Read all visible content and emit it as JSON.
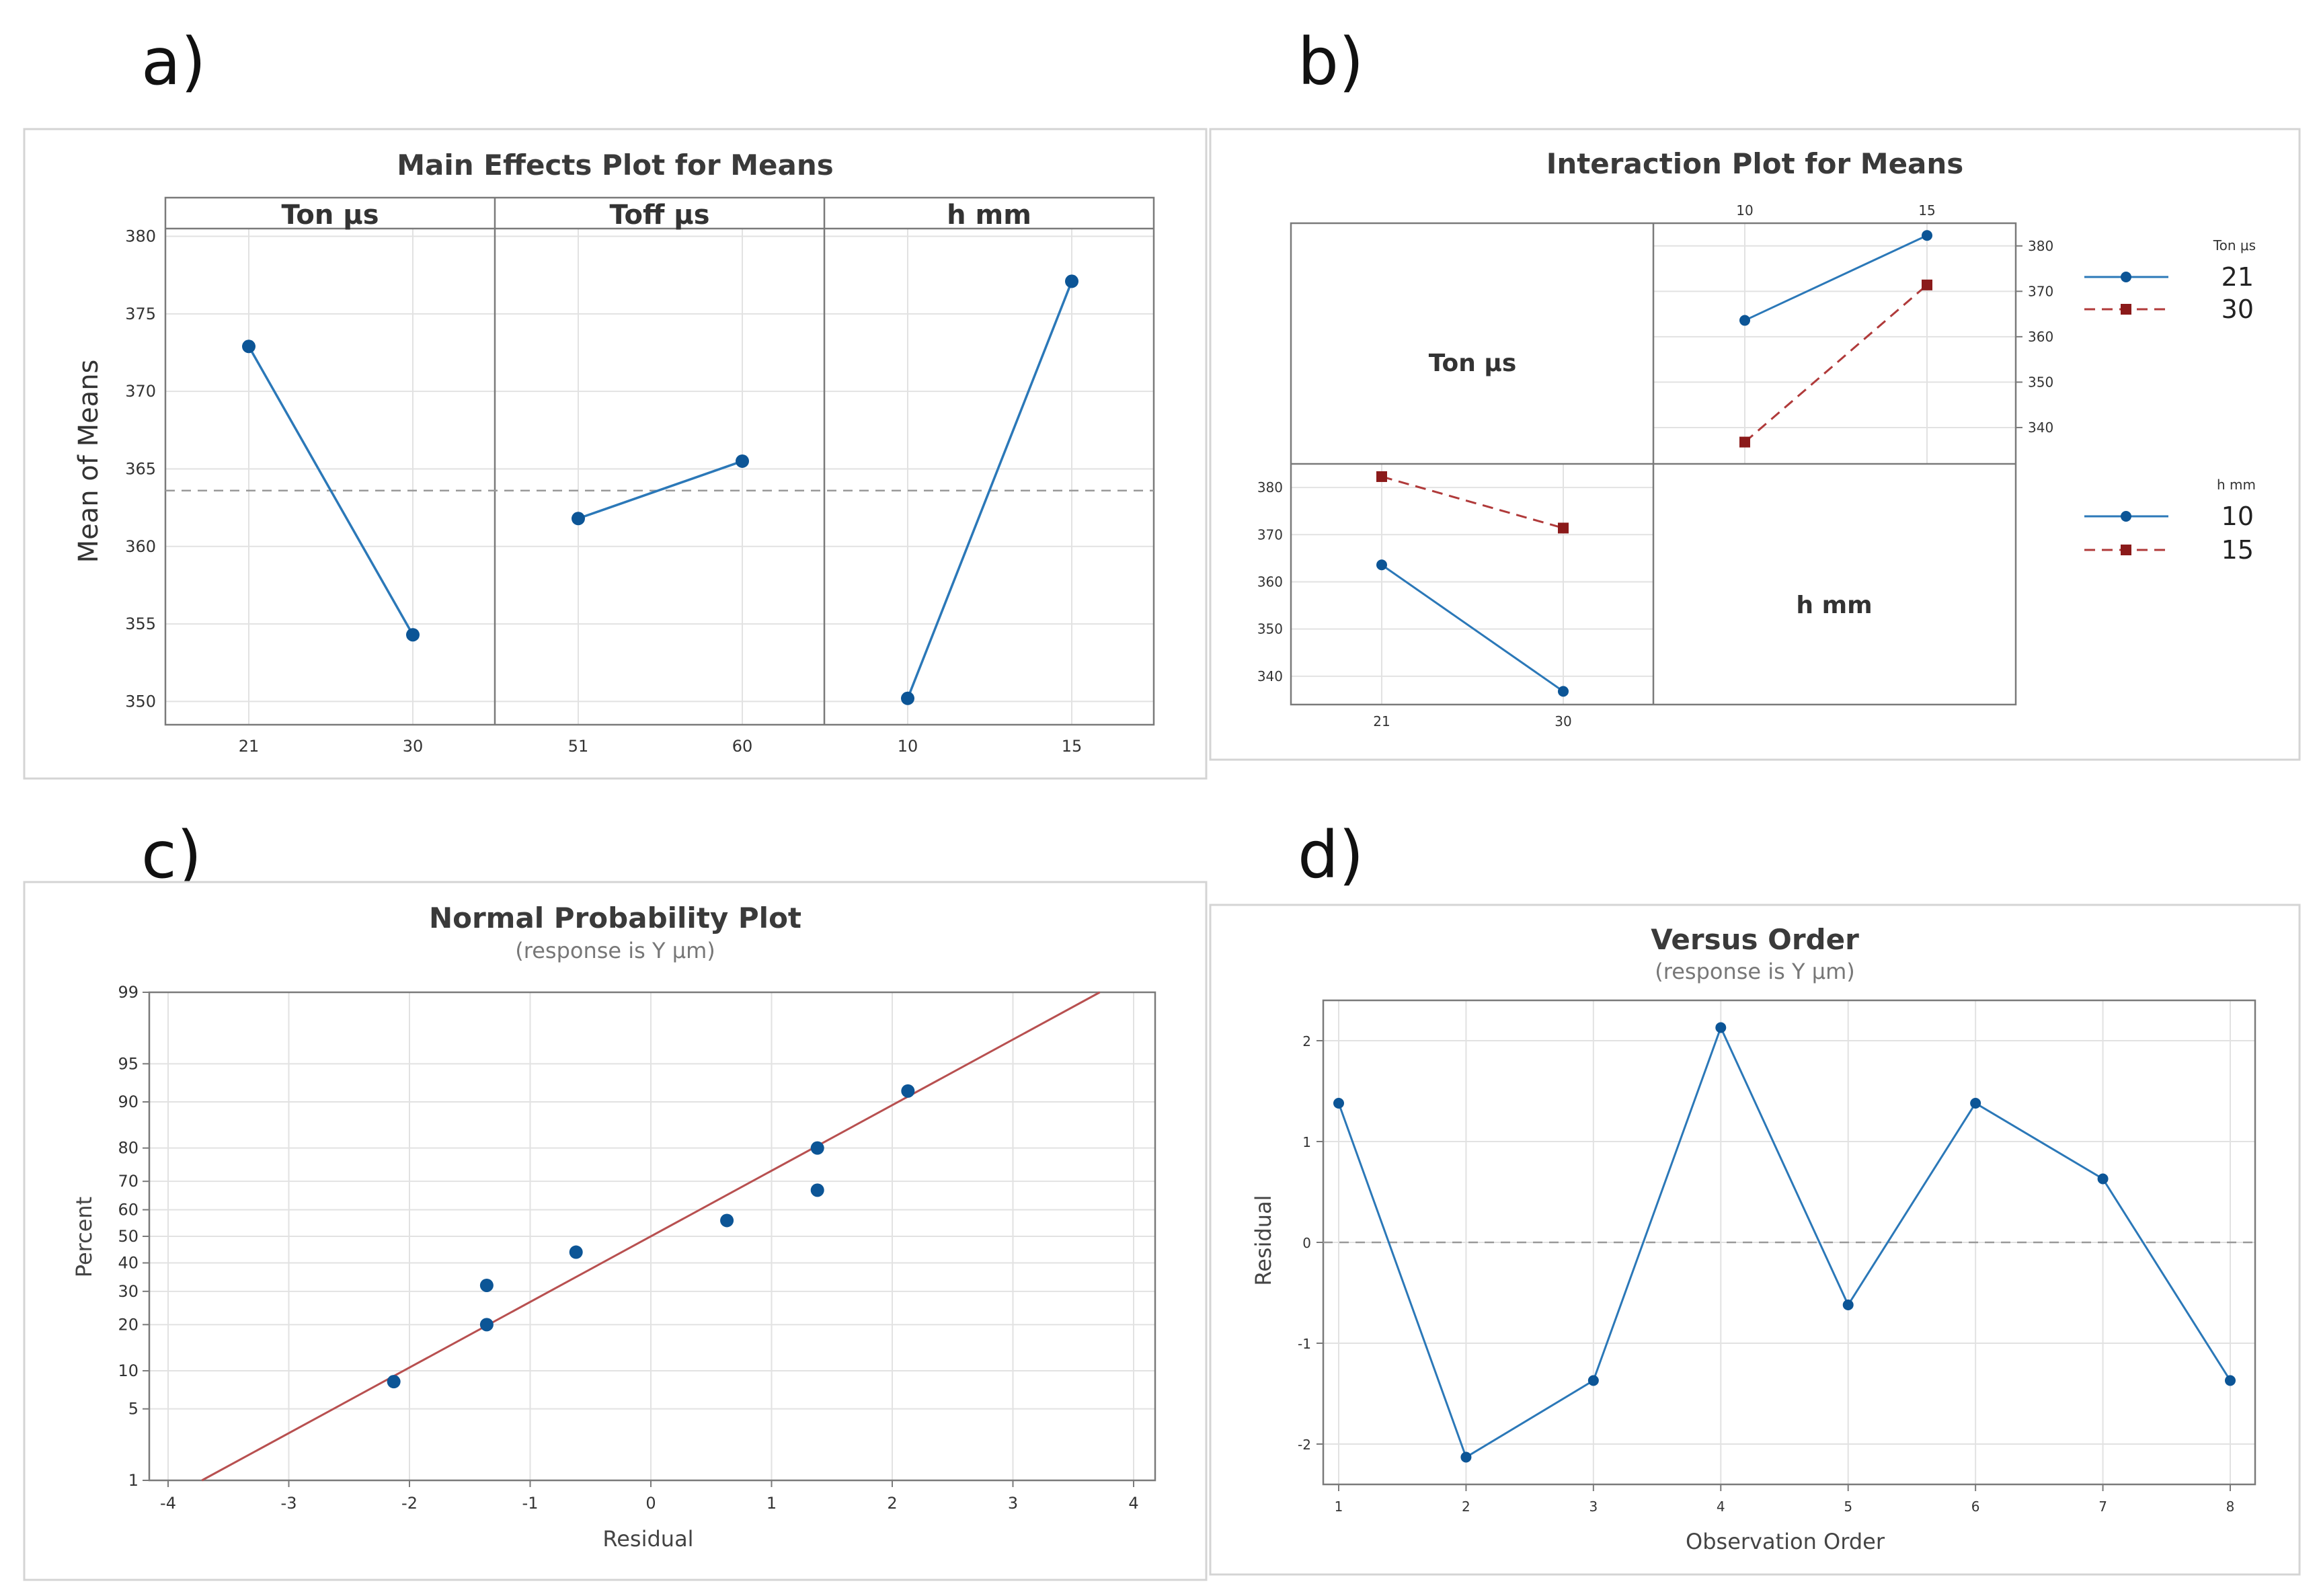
{
  "panels": [
    "a)",
    "b)",
    "c)",
    "d)"
  ],
  "colors": {
    "series1": "#2b78b8",
    "marker1": "#0c5596",
    "series2": "#b03a3a",
    "marker2": "#8b1a1a",
    "fit": "#b85050",
    "ref": "#999999"
  },
  "chart_data": [
    {
      "id": "a",
      "type": "line",
      "title": "Main Effects Plot for Means",
      "ylabel": "Mean of Means",
      "ylim": [
        348.5,
        380.5
      ],
      "yticks": [
        350,
        355,
        360,
        365,
        370,
        375,
        380
      ],
      "reference_y": 363.6,
      "facets": [
        {
          "name": "Ton μs",
          "x": [
            "21",
            "30"
          ],
          "y": [
            372.9,
            354.3
          ]
        },
        {
          "name": "Toff μs",
          "x": [
            "51",
            "60"
          ],
          "y": [
            361.8,
            365.5
          ]
        },
        {
          "name": "h mm",
          "x": [
            "10",
            "15"
          ],
          "y": [
            350.2,
            377.1
          ]
        }
      ]
    },
    {
      "id": "b",
      "type": "line",
      "title": "Interaction Plot for Means",
      "diagonal_labels": [
        "Ton μs",
        "h mm"
      ],
      "top_right": {
        "x": [
          "10",
          "15"
        ],
        "yticks": [
          340,
          350,
          360,
          370,
          380
        ],
        "ylim": [
          332,
          385
        ],
        "series": [
          {
            "name": "21",
            "values": [
              363.6,
              382.3
            ]
          },
          {
            "name": "30",
            "values": [
              336.8,
              371.4
            ]
          }
        ]
      },
      "bottom_left": {
        "x": [
          "21",
          "30"
        ],
        "yticks": [
          340,
          350,
          360,
          370,
          380
        ],
        "ylim": [
          334,
          385
        ],
        "series": [
          {
            "name": "10",
            "values": [
              363.6,
              336.8
            ]
          },
          {
            "name": "15",
            "values": [
              382.3,
              371.4
            ]
          }
        ]
      },
      "legends": [
        {
          "title": "Ton μs",
          "entries": [
            "21",
            "30"
          ]
        },
        {
          "title": "h mm",
          "entries": [
            "10",
            "15"
          ]
        }
      ]
    },
    {
      "id": "c",
      "type": "scatter",
      "title": "Normal Probability Plot",
      "subtitle": "(response is Y μm)",
      "xlabel": "Residual",
      "ylabel": "Percent",
      "xlim": [
        -4,
        4
      ],
      "xticks": [
        -4,
        -3,
        -2,
        -1,
        0,
        1,
        2,
        3,
        4
      ],
      "yticks": [
        1,
        5,
        10,
        20,
        30,
        40,
        50,
        60,
        70,
        80,
        90,
        95,
        99
      ],
      "points": [
        {
          "x": -2.13,
          "y": 8.3
        },
        {
          "x": -1.36,
          "y": 20
        },
        {
          "x": -1.36,
          "y": 32
        },
        {
          "x": -0.62,
          "y": 44
        },
        {
          "x": 0.63,
          "y": 56
        },
        {
          "x": 1.38,
          "y": 67
        },
        {
          "x": 1.38,
          "y": 80
        },
        {
          "x": 2.13,
          "y": 91.7
        }
      ],
      "fit_line": {
        "x": [
          -3.72,
          3.72
        ],
        "y": [
          1,
          99
        ]
      }
    },
    {
      "id": "d",
      "type": "line",
      "title": "Versus Order",
      "subtitle": "(response is Y μm)",
      "xlabel": "Observation Order",
      "ylabel": "Residual",
      "ylim": [
        -2.4,
        2.4
      ],
      "yticks": [
        -2,
        -1,
        0,
        1,
        2
      ],
      "x": [
        1,
        2,
        3,
        4,
        5,
        6,
        7,
        8
      ],
      "y": [
        1.38,
        -2.13,
        -1.37,
        2.13,
        -0.62,
        1.38,
        0.63,
        -1.37
      ],
      "reference_y": 0
    }
  ]
}
